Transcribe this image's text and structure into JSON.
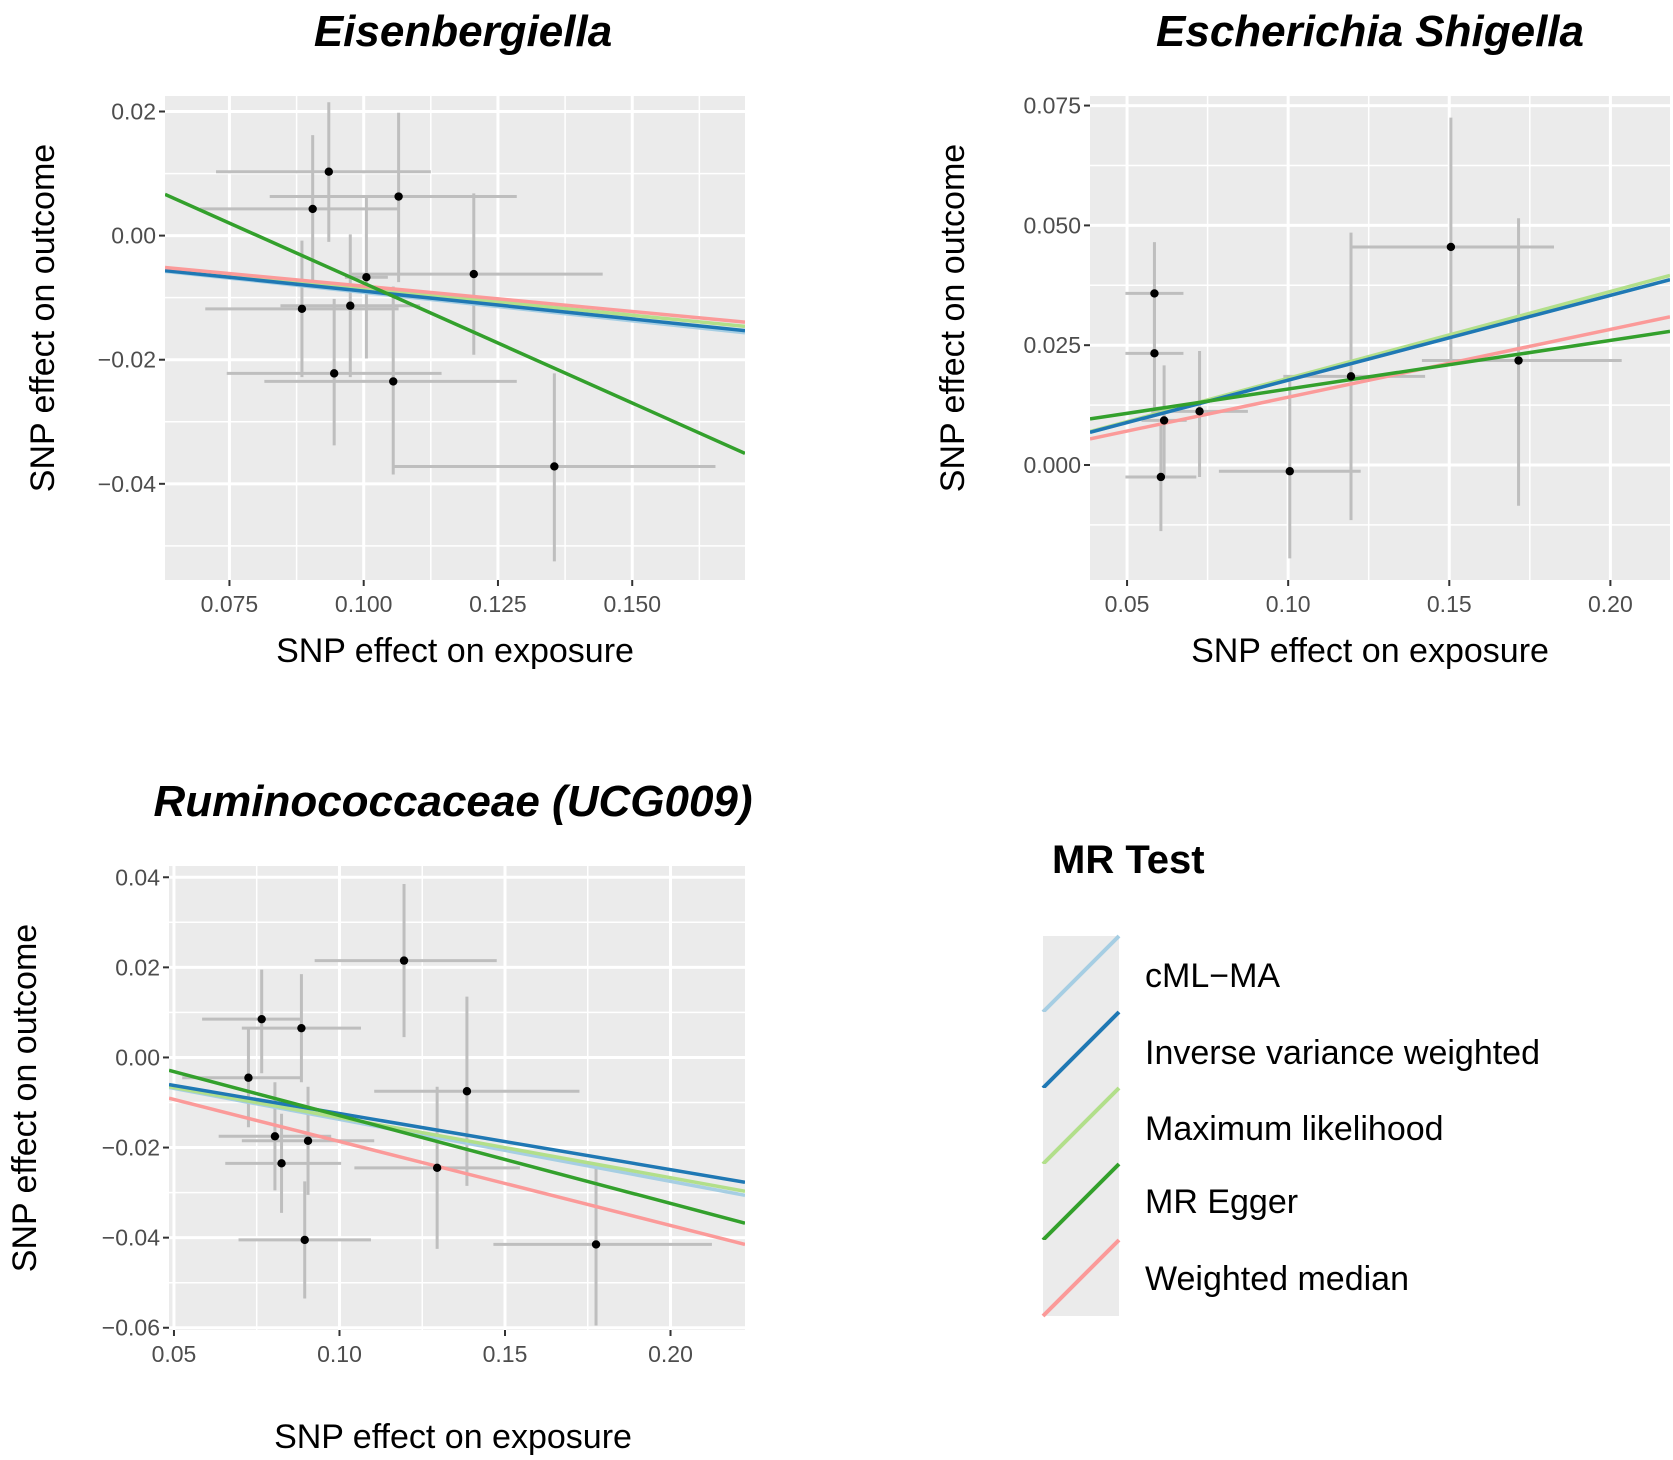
{
  "chart_data": [
    {
      "type": "scatter",
      "title": "Eisenbergiella",
      "xlabel": "SNP effect on exposure",
      "ylabel": "SNP effect on outcome",
      "xlim": [
        0.063,
        0.171
      ],
      "ylim": [
        -0.0555,
        0.0225
      ],
      "xticks": [
        0.075,
        0.1,
        0.125,
        0.15
      ],
      "xtick_labels": [
        "0.075",
        "0.100",
        "0.125",
        "0.150"
      ],
      "yticks": [
        0.02,
        0.0,
        -0.02,
        -0.04
      ],
      "ytick_labels": [
        "0.02",
        "0.00",
        "−0.02",
        "−0.04"
      ],
      "points": [
        {
          "x": 0.0935,
          "y": 0.0103,
          "x_lo": 0.0725,
          "x_hi": 0.1125,
          "y_lo": -0.001,
          "y_hi": 0.0215
        },
        {
          "x": 0.0905,
          "y": 0.0043,
          "x_lo": 0.0695,
          "x_hi": 0.1065,
          "y_lo": -0.0075,
          "y_hi": 0.0162
        },
        {
          "x": 0.1065,
          "y": 0.0063,
          "x_lo": 0.0825,
          "x_hi": 0.1285,
          "y_lo": -0.0075,
          "y_hi": 0.0198
        },
        {
          "x": 0.1005,
          "y": -0.0067,
          "x_lo": 0.0965,
          "x_hi": 0.1045,
          "y_lo": -0.0198,
          "y_hi": 0.0063
        },
        {
          "x": 0.1205,
          "y": -0.0062,
          "x_lo": 0.0975,
          "x_hi": 0.1445,
          "y_lo": -0.0192,
          "y_hi": 0.0068
        },
        {
          "x": 0.0885,
          "y": -0.0118,
          "x_lo": 0.0705,
          "x_hi": 0.1065,
          "y_lo": -0.0228,
          "y_hi": -0.0008
        },
        {
          "x": 0.0975,
          "y": -0.0113,
          "x_lo": 0.0845,
          "x_hi": 0.1105,
          "y_lo": -0.0228,
          "y_hi": 0.0002
        },
        {
          "x": 0.0945,
          "y": -0.0222,
          "x_lo": 0.0745,
          "x_hi": 0.1145,
          "y_lo": -0.0338,
          "y_hi": -0.0102
        },
        {
          "x": 0.1055,
          "y": -0.0235,
          "x_lo": 0.0815,
          "x_hi": 0.1285,
          "y_lo": -0.0385,
          "y_hi": -0.0082
        },
        {
          "x": 0.1355,
          "y": -0.0372,
          "x_lo": 0.1055,
          "x_hi": 0.1655,
          "y_lo": -0.0525,
          "y_hi": -0.0222
        }
      ],
      "lines": [
        {
          "method": "cML-MA",
          "slope": -0.0915
        },
        {
          "method": "Inverse variance weighted",
          "slope": -0.0895
        },
        {
          "method": "Maximum likelihood",
          "slope": -0.0855
        },
        {
          "method": "MR Egger",
          "slope": -0.3865,
          "intercept": 0.031
        },
        {
          "method": "Weighted median",
          "slope": -0.0815
        }
      ]
    },
    {
      "type": "scatter",
      "title": "Escherichia Shigella",
      "xlabel": "SNP effect on exposure",
      "ylabel": "SNP effect on outcome",
      "xlim": [
        0.0385,
        0.2185
      ],
      "ylim": [
        -0.024,
        0.077
      ],
      "xticks": [
        0.05,
        0.1,
        0.15,
        0.2
      ],
      "xtick_labels": [
        "0.05",
        "0.10",
        "0.15",
        "0.20"
      ],
      "yticks": [
        0.075,
        0.05,
        0.025,
        0.0
      ],
      "ytick_labels": [
        "0.075",
        "0.050",
        "0.025",
        "0.000"
      ],
      "points": [
        {
          "x": 0.0585,
          "y": 0.0358,
          "x_lo": 0.0495,
          "x_hi": 0.0675,
          "y_lo": 0.0248,
          "y_hi": 0.0465
        },
        {
          "x": 0.0585,
          "y": 0.0233,
          "x_lo": 0.0495,
          "x_hi": 0.0675,
          "y_lo": 0.0105,
          "y_hi": 0.0355
        },
        {
          "x": 0.0615,
          "y": 0.0093,
          "x_lo": 0.0545,
          "x_hi": 0.0685,
          "y_lo": -0.0025,
          "y_hi": 0.0208
        },
        {
          "x": 0.0605,
          "y": -0.0025,
          "x_lo": 0.0495,
          "x_hi": 0.0715,
          "y_lo": -0.0138,
          "y_hi": 0.0085
        },
        {
          "x": 0.0725,
          "y": 0.0112,
          "x_lo": 0.0575,
          "x_hi": 0.0875,
          "y_lo": -0.0025,
          "y_hi": 0.0238
        },
        {
          "x": 0.1005,
          "y": -0.0013,
          "x_lo": 0.0785,
          "x_hi": 0.1225,
          "y_lo": -0.0195,
          "y_hi": 0.0175
        },
        {
          "x": 0.1195,
          "y": 0.0185,
          "x_lo": 0.0985,
          "x_hi": 0.1425,
          "y_lo": -0.0115,
          "y_hi": 0.0485
        },
        {
          "x": 0.1505,
          "y": 0.0455,
          "x_lo": 0.1195,
          "x_hi": 0.1825,
          "y_lo": 0.0215,
          "y_hi": 0.0725
        },
        {
          "x": 0.1715,
          "y": 0.0218,
          "x_lo": 0.1415,
          "x_hi": 0.2035,
          "y_lo": -0.0085,
          "y_hi": 0.0515
        }
      ],
      "lines": [
        {
          "method": "cML-MA",
          "slope": 0.177
        },
        {
          "method": "Inverse variance weighted",
          "slope": 0.177
        },
        {
          "method": "Maximum likelihood",
          "slope": 0.181
        },
        {
          "method": "MR Egger",
          "slope": 0.1015,
          "intercept": 0.0057
        },
        {
          "method": "Weighted median",
          "slope": 0.1415
        }
      ]
    },
    {
      "type": "scatter",
      "title": "Ruminococcaceae (UCG009)",
      "xlabel": "SNP effect on exposure",
      "ylabel": "SNP effect on outcome",
      "xlim": [
        0.0485,
        0.2225
      ],
      "ylim": [
        -0.0605,
        0.0425
      ],
      "xticks": [
        0.05,
        0.1,
        0.15,
        0.2
      ],
      "xtick_labels": [
        "0.05",
        "0.10",
        "0.15",
        "0.20"
      ],
      "yticks": [
        0.04,
        0.02,
        0.0,
        -0.02,
        -0.04,
        -0.06
      ],
      "ytick_labels": [
        "0.04",
        "0.02",
        "0.00",
        "−0.02",
        "−0.04",
        "−0.06"
      ],
      "points": [
        {
          "x": 0.0765,
          "y": 0.0085,
          "x_lo": 0.0585,
          "x_hi": 0.0885,
          "y_lo": -0.0035,
          "y_hi": 0.0195
        },
        {
          "x": 0.0885,
          "y": 0.0065,
          "x_lo": 0.0705,
          "x_hi": 0.1065,
          "y_lo": -0.0055,
          "y_hi": 0.0185
        },
        {
          "x": 0.0725,
          "y": -0.0045,
          "x_lo": 0.0525,
          "x_hi": 0.0885,
          "y_lo": -0.0155,
          "y_hi": 0.0065
        },
        {
          "x": 0.1195,
          "y": 0.0215,
          "x_lo": 0.0925,
          "x_hi": 0.1475,
          "y_lo": 0.0045,
          "y_hi": 0.0385
        },
        {
          "x": 0.1385,
          "y": -0.0075,
          "x_lo": 0.1105,
          "x_hi": 0.1725,
          "y_lo": -0.0285,
          "y_hi": 0.0135
        },
        {
          "x": 0.0805,
          "y": -0.0175,
          "x_lo": 0.0635,
          "x_hi": 0.0975,
          "y_lo": -0.0295,
          "y_hi": -0.0055
        },
        {
          "x": 0.0905,
          "y": -0.0185,
          "x_lo": 0.0705,
          "x_hi": 0.1105,
          "y_lo": -0.0305,
          "y_hi": -0.0065
        },
        {
          "x": 0.0825,
          "y": -0.0235,
          "x_lo": 0.0655,
          "x_hi": 0.1005,
          "y_lo": -0.0345,
          "y_hi": -0.0125
        },
        {
          "x": 0.1295,
          "y": -0.0245,
          "x_lo": 0.1045,
          "x_hi": 0.1545,
          "y_lo": -0.0425,
          "y_hi": -0.0065
        },
        {
          "x": 0.0895,
          "y": -0.0405,
          "x_lo": 0.0695,
          "x_hi": 0.1095,
          "y_lo": -0.0535,
          "y_hi": -0.0275
        },
        {
          "x": 0.1775,
          "y": -0.0415,
          "x_lo": 0.1465,
          "x_hi": 0.2125,
          "y_lo": -0.0595,
          "y_hi": -0.0235
        }
      ],
      "lines": [
        {
          "method": "cML-MA",
          "slope": -0.1375
        },
        {
          "method": "Inverse variance weighted",
          "slope": -0.1245
        },
        {
          "method": "Maximum likelihood",
          "slope": -0.1335
        },
        {
          "method": "MR Egger",
          "slope": -0.195,
          "intercept": 0.0066
        },
        {
          "method": "Weighted median",
          "slope": -0.1865
        }
      ]
    }
  ],
  "legend": {
    "title": "MR Test",
    "entries": [
      {
        "label": "cML−MA",
        "method": "cML-MA",
        "color": "#a6cee3"
      },
      {
        "label": "Inverse variance weighted",
        "method": "Inverse variance weighted",
        "color": "#1f78b4"
      },
      {
        "label": "Maximum likelihood",
        "method": "Maximum likelihood",
        "color": "#b2df8a"
      },
      {
        "label": "MR Egger",
        "method": "MR Egger",
        "color": "#33a02c"
      },
      {
        "label": "Weighted median",
        "method": "Weighted median",
        "color": "#fb9a99"
      }
    ]
  },
  "colors": {
    "panel_background": "#ebebeb",
    "grid": "#ffffff",
    "errorbar": "#bebebe",
    "point": "#000000"
  }
}
